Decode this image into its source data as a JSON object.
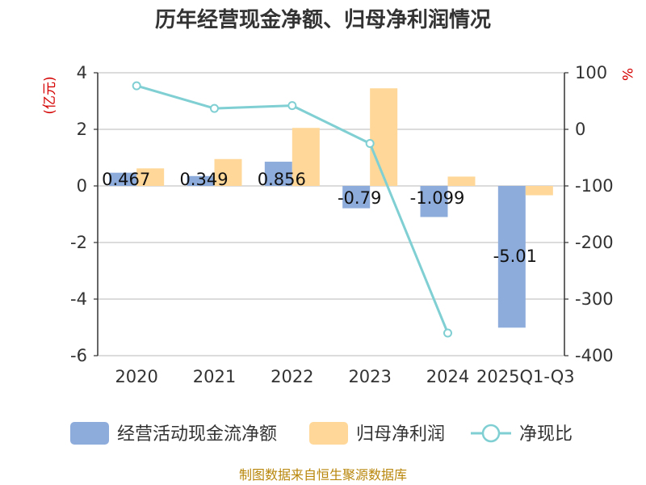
{
  "chart_data": {
    "type": "bar",
    "title": "历年经营现金净额、归母净利润情况",
    "categories": [
      "2020",
      "2021",
      "2022",
      "2023",
      "2024",
      "2025Q1-Q3"
    ],
    "left_axis": {
      "unit": "(亿元)",
      "ylim": [
        -6,
        4
      ],
      "ticks": [
        "4",
        "2",
        "0",
        "-2",
        "-4",
        "-6"
      ]
    },
    "right_axis": {
      "unit": "%",
      "ylim": [
        -400,
        100
      ],
      "ticks": [
        "100",
        "0",
        "-100",
        "-200",
        "-300",
        "-400"
      ]
    },
    "series": [
      {
        "name": "经营活动现金流净额",
        "type": "bar",
        "axis": "left",
        "color": "#8eacdb",
        "values": [
          0.467,
          0.349,
          0.856,
          -0.79,
          -1.099,
          -5.01
        ],
        "labels": [
          "0.467",
          "0.349",
          "0.856",
          "-0.79",
          "-1.099",
          "-5.01"
        ]
      },
      {
        "name": "归母净利润",
        "type": "bar",
        "axis": "left",
        "color": "#ffd899",
        "values": [
          0.62,
          0.95,
          2.05,
          3.45,
          0.33,
          -0.33
        ]
      },
      {
        "name": "净现比",
        "type": "line",
        "axis": "right",
        "color": "#7fcfd3",
        "values": [
          77,
          37,
          42,
          -25,
          -360,
          null
        ]
      }
    ],
    "source": "制图数据来自恒生聚源数据库"
  }
}
